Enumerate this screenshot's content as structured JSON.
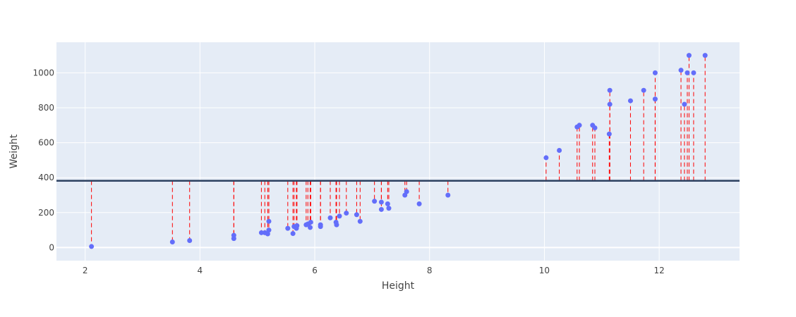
{
  "chart_data": {
    "type": "scatter",
    "title": "",
    "xlabel": "Height",
    "ylabel": "Weight",
    "xlim": [
      1.5,
      13.4
    ],
    "ylim": [
      -75,
      1175
    ],
    "x_ticks": [
      2,
      4,
      6,
      8,
      10,
      12
    ],
    "y_ticks": [
      0,
      200,
      400,
      600,
      800,
      1000
    ],
    "grid": true,
    "legend": false,
    "mean_line": 382,
    "colors": {
      "plot_bg": "#E5ECF6",
      "grid": "#FFFFFF",
      "point": "#636EFA",
      "residual": "#FF0000",
      "mean_line": "#2A3F5F"
    },
    "points": [
      [
        2.11,
        5.9
      ],
      [
        3.52,
        32
      ],
      [
        3.82,
        40
      ],
      [
        4.59,
        51.5
      ],
      [
        4.59,
        70
      ],
      [
        5.07,
        85
      ],
      [
        5.13,
        85
      ],
      [
        5.18,
        78
      ],
      [
        5.2,
        100
      ],
      [
        5.2,
        150
      ],
      [
        5.53,
        110
      ],
      [
        5.62,
        80
      ],
      [
        5.64,
        120
      ],
      [
        5.68,
        110
      ],
      [
        5.69,
        125
      ],
      [
        5.85,
        130
      ],
      [
        5.88,
        135
      ],
      [
        5.92,
        115
      ],
      [
        5.93,
        145
      ],
      [
        6.1,
        120
      ],
      [
        6.1,
        130
      ],
      [
        6.27,
        170
      ],
      [
        6.37,
        145
      ],
      [
        6.38,
        130
      ],
      [
        6.43,
        180
      ],
      [
        6.55,
        197
      ],
      [
        6.73,
        188
      ],
      [
        6.79,
        150
      ],
      [
        7.04,
        265
      ],
      [
        7.16,
        260
      ],
      [
        7.16,
        218
      ],
      [
        7.27,
        250
      ],
      [
        7.29,
        225
      ],
      [
        7.57,
        300
      ],
      [
        7.6,
        320
      ],
      [
        7.82,
        250
      ],
      [
        8.32,
        300
      ],
      [
        10.03,
        514
      ],
      [
        10.26,
        556
      ],
      [
        10.57,
        690
      ],
      [
        10.61,
        700
      ],
      [
        10.84,
        700
      ],
      [
        10.88,
        685
      ],
      [
        11.14,
        900
      ],
      [
        11.14,
        820
      ],
      [
        11.13,
        650
      ],
      [
        11.5,
        840
      ],
      [
        11.73,
        900
      ],
      [
        11.93,
        1000
      ],
      [
        11.93,
        850
      ],
      [
        12.38,
        1015
      ],
      [
        12.44,
        820
      ],
      [
        12.49,
        1000
      ],
      [
        12.52,
        1100
      ],
      [
        12.6,
        1000
      ],
      [
        12.8,
        1100
      ]
    ]
  }
}
